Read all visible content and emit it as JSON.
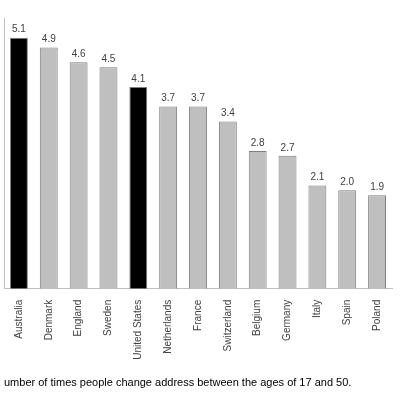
{
  "chart_data": {
    "type": "bar",
    "title": "umber of times people change address between the ages of 17 and 50.",
    "categories": [
      "Australia",
      "Denmark",
      "England",
      "Sweden",
      "United States",
      "Netherlands",
      "France",
      "Switzerland",
      "Belgium",
      "Germany",
      "Italy",
      "Spain",
      "Poland"
    ],
    "values": [
      5.1,
      4.9,
      4.6,
      4.5,
      4.1,
      3.7,
      3.7,
      3.4,
      2.8,
      2.7,
      2.1,
      2.0,
      1.9
    ],
    "value_labels": [
      "5.1",
      "4.9",
      "4.6",
      "4.5",
      "4.1",
      "3.7",
      "3.7",
      "3.4",
      "2.8",
      "2.7",
      "2.1",
      "2.0",
      "1.9"
    ],
    "colors": [
      "#000000",
      "#bfbfbf",
      "#bfbfbf",
      "#bfbfbf",
      "#000000",
      "#bfbfbf",
      "#bfbfbf",
      "#bfbfbf",
      "#bfbfbf",
      "#bfbfbf",
      "#bfbfbf",
      "#bfbfbf",
      "#bfbfbf"
    ],
    "ylim": [
      0,
      5.5
    ],
    "grid": false,
    "data_labels": true,
    "tick_labels": "x"
  }
}
